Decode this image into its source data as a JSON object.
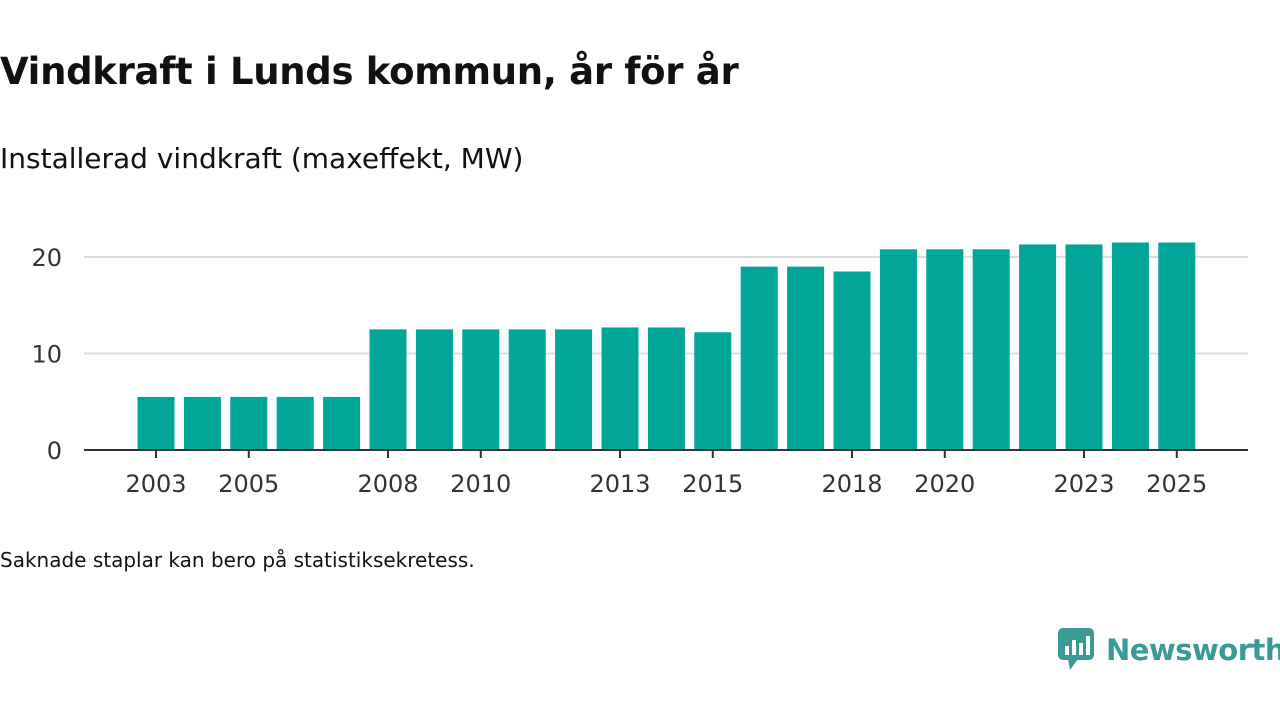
{
  "header": {
    "title": "Vindkraft i Lunds kommun, år för år",
    "subtitle": "Installerad vindkraft (maxeffekt, MW)"
  },
  "footnote": "Saknade staplar kan bero på statistiksekretess.",
  "brand": {
    "name": "Newsworthy",
    "icon": "newsworthy-logo-icon"
  },
  "colors": {
    "bar": "#00a69a",
    "grid": "#dddddd",
    "axis": "#333333",
    "brand": "#3a9a95"
  },
  "chart_data": {
    "type": "bar",
    "title": "Vindkraft i Lunds kommun, år för år",
    "ylabel": "Installerad vindkraft (maxeffekt, MW)",
    "xlabel": "",
    "categories": [
      "2003",
      "2004",
      "2005",
      "2006",
      "2007",
      "2008",
      "2009",
      "2010",
      "2011",
      "2012",
      "2013",
      "2014",
      "2015",
      "2016",
      "2017",
      "2018",
      "2019",
      "2020",
      "2021",
      "2022",
      "2023",
      "2024",
      "2025"
    ],
    "values": [
      5.5,
      5.5,
      5.5,
      5.5,
      5.5,
      12.5,
      12.5,
      12.5,
      12.5,
      12.5,
      12.7,
      12.7,
      12.2,
      19.0,
      19.0,
      18.5,
      20.8,
      20.8,
      20.8,
      21.3,
      21.3,
      21.5,
      21.5
    ],
    "xtick_labels": [
      "2003",
      "2005",
      "2008",
      "2010",
      "2013",
      "2015",
      "2018",
      "2020",
      "2023",
      "2025"
    ],
    "yticks": [
      0,
      10,
      20
    ],
    "ylim": [
      0,
      22
    ],
    "grid": true
  }
}
